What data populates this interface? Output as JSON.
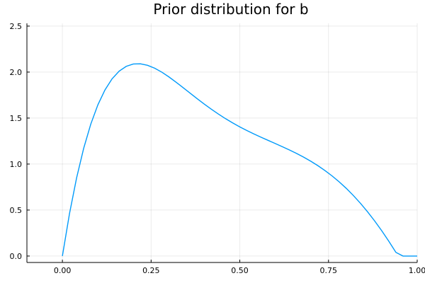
{
  "chart_data": {
    "type": "line",
    "title": "Prior distribution for b",
    "xlabel": "",
    "ylabel": "",
    "xlim": [
      -0.1,
      1.0
    ],
    "ylim": [
      -0.07,
      2.53
    ],
    "x_ticks": [
      0.0,
      0.25,
      0.5,
      0.75,
      1.0
    ],
    "x_tick_labels": [
      "0.00",
      "0.25",
      "0.50",
      "0.75",
      "1.00"
    ],
    "y_ticks": [
      0.0,
      0.5,
      1.0,
      1.5,
      2.0,
      2.5
    ],
    "y_tick_labels": [
      "0.0",
      "0.5",
      "1.0",
      "1.5",
      "2.0",
      "2.5"
    ],
    "grid": true,
    "legend": "none",
    "series": [
      {
        "color": "#009AFA",
        "x": [
          0.0,
          0.02,
          0.04,
          0.06,
          0.08,
          0.1,
          0.12,
          0.14,
          0.16,
          0.18,
          0.2,
          0.22,
          0.24,
          0.26,
          0.28,
          0.3,
          0.32,
          0.34,
          0.36,
          0.38,
          0.4,
          0.42,
          0.44,
          0.46,
          0.48,
          0.5,
          0.52,
          0.54,
          0.56,
          0.58,
          0.6,
          0.62,
          0.64,
          0.66,
          0.68,
          0.7,
          0.72,
          0.74,
          0.76,
          0.78,
          0.8,
          0.82,
          0.84,
          0.86,
          0.88,
          0.9,
          0.92,
          0.94,
          0.96,
          0.98,
          1.0
        ],
        "y": [
          0.0,
          0.4611,
          0.8493,
          1.1715,
          1.4343,
          1.6439,
          1.8062,
          1.9267,
          2.0106,
          2.0628,
          2.088,
          2.0903,
          2.0739,
          2.0426,
          1.9996,
          1.9482,
          1.8914,
          1.8316,
          1.7708,
          1.7105,
          1.6519,
          1.5958,
          1.5428,
          1.4932,
          1.4471,
          1.4043,
          1.3645,
          1.3271,
          1.2917,
          1.2574,
          1.2234,
          1.1889,
          1.1532,
          1.1155,
          1.075,
          1.0311,
          0.9829,
          0.9299,
          0.8714,
          0.807,
          0.7362,
          0.6585,
          0.5737,
          0.4816,
          0.382,
          0.2751,
          0.161,
          0.04,
          0.0,
          0.0,
          0.0
        ]
      }
    ]
  }
}
